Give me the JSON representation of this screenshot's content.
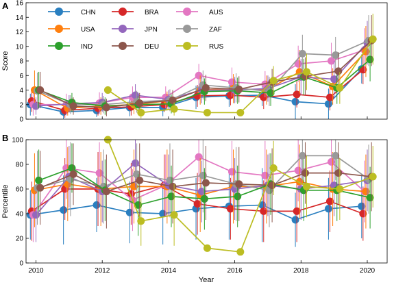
{
  "chart_data": [
    {
      "panel_letter": "A",
      "type": "line",
      "ylabel": "Score",
      "ylim": [
        0,
        16
      ],
      "yticks": [
        0,
        2,
        4,
        6,
        8,
        10,
        12,
        14,
        16
      ],
      "xlim": [
        2009.7,
        2020.6
      ],
      "grid": false,
      "legend": "top-left",
      "series": [
        {
          "name": "CHN",
          "color": "#2a7fc0",
          "x": [
            2010,
            2011,
            2012,
            2013,
            2014,
            2015,
            2016,
            2017,
            2018,
            2019,
            2020
          ],
          "values": [
            2.0,
            1.0,
            1.2,
            1.6,
            1.6,
            3.0,
            3.2,
            3.3,
            2.4,
            2.1,
            6.9
          ],
          "err": [
            1.5,
            1.0,
            0.9,
            1.2,
            1.2,
            1.6,
            1.5,
            1.5,
            2.4,
            2.1,
            2.0
          ]
        },
        {
          "name": "BRA",
          "color": "#d62728",
          "x": [
            2010,
            2011,
            2012,
            2013,
            2014,
            2015,
            2016,
            2017,
            2018,
            2019,
            2020
          ],
          "values": [
            2.5,
            1.2,
            1.5,
            1.7,
            2.0,
            3.2,
            3.3,
            3.0,
            3.4,
            3.0,
            6.8
          ],
          "err": [
            1.5,
            1.0,
            1.0,
            1.2,
            1.0,
            1.5,
            1.4,
            1.6,
            1.8,
            1.8,
            2.0
          ]
        },
        {
          "name": "AUS",
          "color": "#e377c2",
          "x": [
            2010,
            2011,
            2012,
            2013,
            2014,
            2015,
            2016,
            2017,
            2018,
            2019,
            2020
          ],
          "values": [
            2.0,
            2.0,
            2.2,
            3.0,
            3.0,
            6.0,
            5.1,
            4.8,
            7.6,
            8.0,
            9.5
          ],
          "err": [
            1.5,
            1.5,
            1.5,
            1.5,
            1.5,
            1.6,
            2.0,
            1.8,
            2.5,
            2.5,
            3.0
          ]
        },
        {
          "name": "USA",
          "color": "#ff7f0e",
          "x": [
            2010,
            2011,
            2012,
            2013,
            2014,
            2015,
            2016,
            2017,
            2018,
            2019,
            2020
          ],
          "values": [
            4.0,
            1.5,
            1.8,
            2.0,
            2.5,
            4.0,
            4.2,
            4.0,
            6.5,
            4.5,
            9.3
          ],
          "err": [
            2.7,
            1.0,
            1.2,
            1.3,
            1.3,
            2.0,
            2.0,
            2.0,
            3.0,
            2.5,
            3.5
          ]
        },
        {
          "name": "JPN",
          "color": "#9467bd",
          "x": [
            2010,
            2011,
            2012,
            2013,
            2014,
            2015,
            2016,
            2017,
            2018,
            2019,
            2020
          ],
          "values": [
            1.8,
            2.1,
            2.3,
            3.3,
            2.7,
            4.0,
            4.0,
            4.2,
            5.8,
            5.5,
            10.5
          ],
          "err": [
            1.2,
            1.2,
            1.3,
            1.5,
            1.3,
            1.8,
            1.8,
            1.8,
            2.5,
            2.5,
            3.0
          ]
        },
        {
          "name": "ZAF",
          "color": "#999999",
          "x": [
            2010,
            2011,
            2012,
            2013,
            2014,
            2015,
            2016,
            2017,
            2018,
            2019,
            2020
          ],
          "values": [
            3.9,
            2.0,
            2.0,
            2.4,
            2.6,
            4.7,
            4.3,
            3.8,
            9.0,
            8.8,
            10.8
          ],
          "err": [
            2.5,
            1.3,
            1.2,
            1.5,
            1.5,
            2.0,
            2.0,
            2.0,
            2.6,
            2.5,
            3.5
          ]
        },
        {
          "name": "IND",
          "color": "#2ca02c",
          "x": [
            2010,
            2011,
            2012,
            2013,
            2014,
            2015,
            2016,
            2017,
            2018,
            2019,
            2020
          ],
          "values": [
            4.0,
            2.3,
            1.8,
            2.0,
            2.1,
            3.8,
            3.9,
            3.6,
            5.8,
            4.3,
            8.2
          ],
          "err": [
            2.5,
            1.3,
            1.2,
            1.2,
            1.3,
            1.8,
            1.8,
            1.8,
            2.5,
            2.2,
            3.0
          ]
        },
        {
          "name": "DEU",
          "color": "#8c564b",
          "x": [
            2010,
            2011,
            2012,
            2013,
            2014,
            2015,
            2016,
            2017,
            2018,
            2019,
            2020
          ],
          "values": [
            4.0,
            1.8,
            1.6,
            2.2,
            2.6,
            4.3,
            4.1,
            5.1,
            5.9,
            6.6,
            10.8
          ],
          "err": [
            2.5,
            1.2,
            1.2,
            1.4,
            1.4,
            1.8,
            1.8,
            1.8,
            2.6,
            2.6,
            3.5
          ]
        },
        {
          "name": "RUS",
          "color": "#bcbd22",
          "x": [
            2010,
            2011,
            2012,
            2013,
            2014,
            2015,
            2016,
            2017,
            2018,
            2019,
            2020
          ],
          "values": [
            null,
            null,
            4.0,
            0.9,
            1.4,
            0.9,
            0.9,
            5.3,
            6.5,
            4.3,
            11.0
          ],
          "err": [
            null,
            null,
            0,
            0.8,
            0.9,
            0,
            0,
            2.0,
            2.5,
            2.2,
            3.5
          ]
        }
      ]
    },
    {
      "panel_letter": "B",
      "type": "line",
      "xlabel": "Year",
      "ylabel": "Percentile",
      "ylim": [
        0,
        100
      ],
      "yticks": [
        0,
        20,
        40,
        60,
        80,
        100
      ],
      "xlim": [
        2009.7,
        2020.6
      ],
      "xticks": [
        2010,
        2012,
        2014,
        2016,
        2018,
        2020
      ],
      "grid": false,
      "series": [
        {
          "name": "CHN",
          "color": "#2a7fc0",
          "x": [
            2010,
            2011,
            2012,
            2013,
            2014,
            2015,
            2016,
            2017,
            2018,
            2019,
            2020
          ],
          "values": [
            39,
            43,
            47,
            41,
            40,
            44,
            46,
            47,
            35,
            44,
            46
          ],
          "err": [
            20,
            28,
            22,
            25,
            25,
            25,
            27,
            30,
            22,
            25,
            26
          ]
        },
        {
          "name": "BRA",
          "color": "#d62728",
          "x": [
            2010,
            2011,
            2012,
            2013,
            2014,
            2015,
            2016,
            2017,
            2018,
            2019,
            2020
          ],
          "values": [
            42,
            60,
            60,
            56,
            63,
            48,
            44,
            42,
            42,
            50,
            40
          ],
          "err": [
            24,
            25,
            30,
            25,
            25,
            25,
            25,
            25,
            25,
            25,
            22
          ]
        },
        {
          "name": "AUS",
          "color": "#e377c2",
          "x": [
            2010,
            2011,
            2012,
            2013,
            2014,
            2015,
            2016,
            2017,
            2018,
            2019,
            2020
          ],
          "values": [
            39,
            77,
            73,
            51,
            63,
            86,
            74,
            71,
            75,
            82,
            58
          ],
          "err": [
            22,
            25,
            25,
            25,
            25,
            20,
            25,
            28,
            25,
            25,
            25
          ]
        },
        {
          "name": "USA",
          "color": "#ff7f0e",
          "x": [
            2010,
            2011,
            2012,
            2013,
            2014,
            2015,
            2016,
            2017,
            2018,
            2019,
            2020
          ],
          "values": [
            59,
            64,
            60,
            62,
            62,
            55,
            62,
            62,
            66,
            60,
            58
          ],
          "err": [
            30,
            30,
            30,
            30,
            30,
            30,
            30,
            30,
            30,
            30,
            30
          ]
        },
        {
          "name": "JPN",
          "color": "#9467bd",
          "x": [
            2010,
            2011,
            2012,
            2013,
            2014,
            2015,
            2016,
            2017,
            2018,
            2019,
            2020
          ],
          "values": [
            39,
            70,
            58,
            81,
            63,
            58,
            60,
            63,
            60,
            63,
            67
          ],
          "err": [
            22,
            25,
            25,
            20,
            25,
            25,
            25,
            25,
            25,
            25,
            25
          ]
        },
        {
          "name": "ZAF",
          "color": "#999999",
          "x": [
            2010,
            2011,
            2012,
            2013,
            2014,
            2015,
            2016,
            2017,
            2018,
            2019,
            2020
          ],
          "values": [
            61,
            68,
            62,
            72,
            67,
            71,
            64,
            59,
            87,
            87,
            68
          ],
          "err": [
            30,
            30,
            30,
            25,
            30,
            30,
            30,
            30,
            20,
            20,
            28
          ]
        },
        {
          "name": "IND",
          "color": "#2ca02c",
          "x": [
            2010,
            2011,
            2012,
            2013,
            2014,
            2015,
            2016,
            2017,
            2018,
            2019,
            2020
          ],
          "values": [
            67,
            77,
            59,
            47,
            54,
            52,
            54,
            64,
            59,
            59,
            53
          ],
          "err": [
            25,
            20,
            25,
            25,
            25,
            25,
            25,
            25,
            25,
            25,
            25
          ]
        },
        {
          "name": "DEU",
          "color": "#8c564b",
          "x": [
            2010,
            2011,
            2012,
            2013,
            2014,
            2015,
            2016,
            2017,
            2018,
            2019,
            2020
          ],
          "values": [
            61,
            72,
            58,
            67,
            62,
            65,
            64,
            63,
            73,
            73,
            70
          ],
          "err": [
            30,
            25,
            30,
            30,
            30,
            30,
            30,
            30,
            25,
            25,
            28
          ]
        },
        {
          "name": "RUS",
          "color": "#bcbd22",
          "x": [
            2010,
            2011,
            2012,
            2013,
            2014,
            2015,
            2016,
            2017,
            2018,
            2019,
            2020
          ],
          "values": [
            null,
            null,
            100,
            34,
            39,
            12,
            9,
            77,
            62,
            60,
            70
          ],
          "err": [
            null,
            null,
            0,
            20,
            25,
            0,
            0,
            22,
            25,
            25,
            25
          ]
        }
      ]
    }
  ]
}
